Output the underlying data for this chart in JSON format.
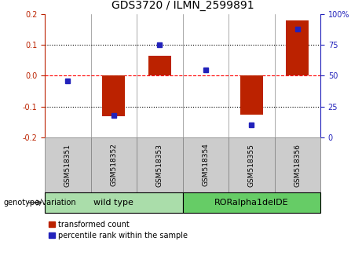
{
  "title": "GDS3720 / ILMN_2599891",
  "samples": [
    "GSM518351",
    "GSM518352",
    "GSM518353",
    "GSM518354",
    "GSM518355",
    "GSM518356"
  ],
  "transformed_count": [
    0.0,
    -0.13,
    0.065,
    0.0,
    -0.125,
    0.18
  ],
  "percentile_rank_raw": [
    46,
    18,
    75,
    55,
    10,
    88
  ],
  "bar_color": "#bb2200",
  "dot_color": "#2222bb",
  "groups": [
    {
      "label": "wild type",
      "indices": [
        0,
        1,
        2
      ],
      "color": "#aaddaa"
    },
    {
      "label": "RORalpha1delDE",
      "indices": [
        3,
        4,
        5
      ],
      "color": "#66cc66"
    }
  ],
  "ylim_left": [
    -0.2,
    0.2
  ],
  "ylim_right": [
    0,
    100
  ],
  "yticks_left": [
    -0.2,
    -0.1,
    0.0,
    0.1,
    0.2
  ],
  "yticks_right": [
    0,
    25,
    50,
    75,
    100
  ],
  "ytick_labels_right": [
    "0",
    "25",
    "50",
    "75",
    "100%"
  ],
  "hlines": [
    -0.1,
    0.0,
    0.1
  ],
  "hline_colors": [
    "black",
    "red",
    "black"
  ],
  "hline_styles": [
    "dotted",
    "dotted",
    "dotted"
  ],
  "hline_zero_style": "dashed",
  "legend_items": [
    "transformed count",
    "percentile rank within the sample"
  ],
  "genotype_label": "genotype/variation",
  "title_fontsize": 10,
  "axis_fontsize": 7.5,
  "tick_fontsize": 7,
  "sample_fontsize": 6.5,
  "group_fontsize": 8,
  "legend_fontsize": 7
}
